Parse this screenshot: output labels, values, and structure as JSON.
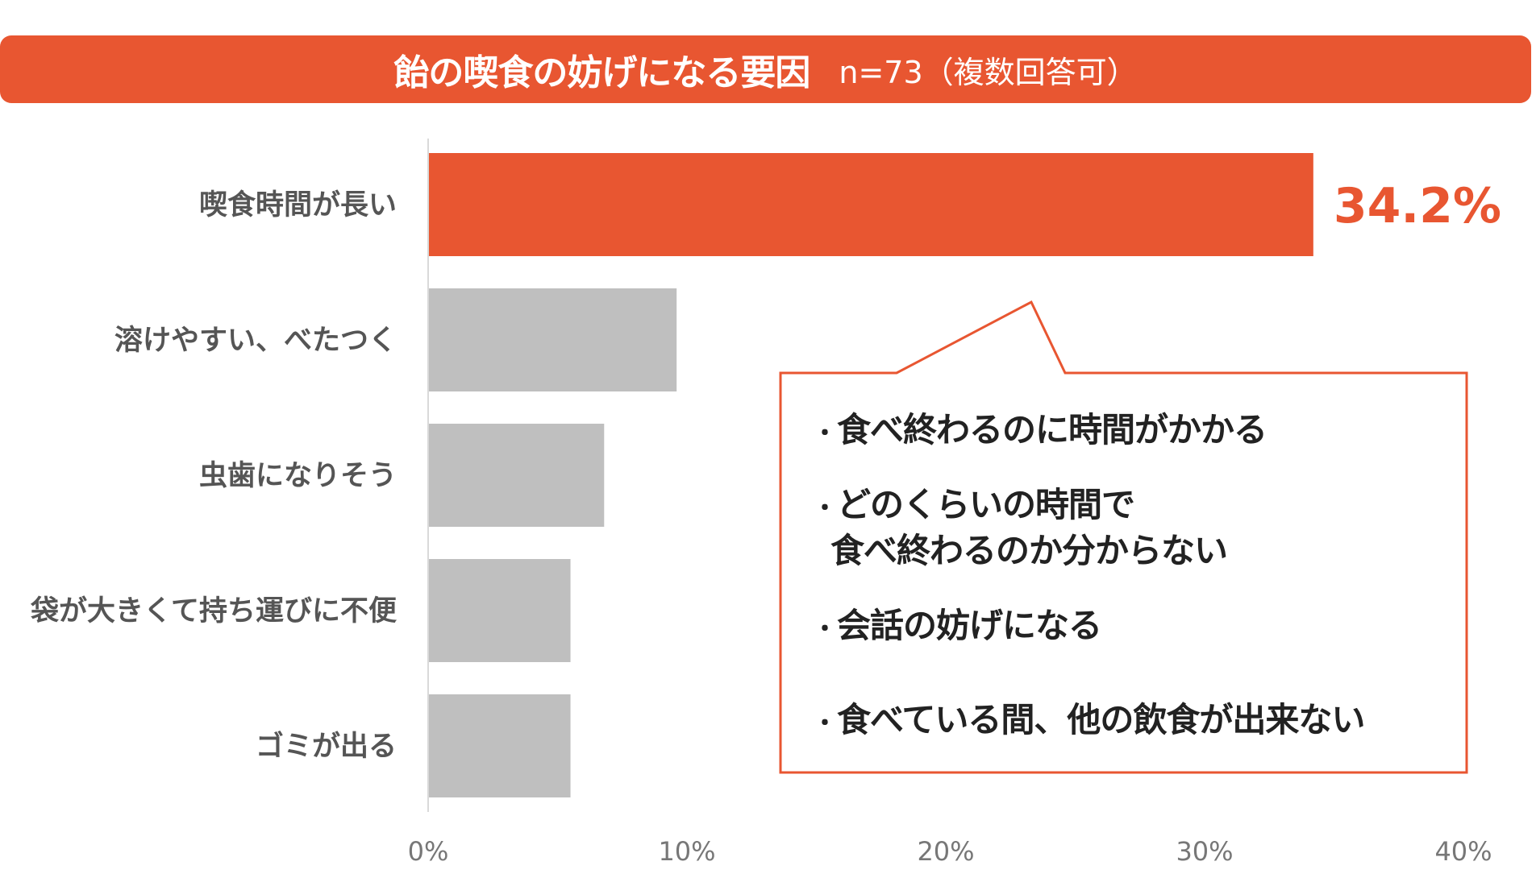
{
  "title": {
    "main": "飴の喫食の妨げになる要因",
    "sub": "n=73（複数回答可）"
  },
  "colors": {
    "accent": "#E85631",
    "bar_gray": "#BFBFBF",
    "axis": "#D9D9D9"
  },
  "chart_data": {
    "type": "bar",
    "orientation": "horizontal",
    "title": "飴の喫食の妨げになる要因",
    "categories": [
      "喫食時間が長い",
      "溶けやすい、べたつく",
      "虫歯になりそう",
      "袋が大きくて持ち運びに不便",
      "ゴミが出る"
    ],
    "values": [
      34.2,
      9.6,
      6.8,
      5.5,
      5.5
    ],
    "highlight_index": 0,
    "data_label": "34.2%",
    "xlim": [
      0,
      40
    ],
    "ticks": [
      "0%",
      "10%",
      "20%",
      "30%",
      "40%"
    ],
    "grid": false
  },
  "callout": {
    "bullet": "・",
    "items": [
      [
        "食べ終わるのに時間がかかる"
      ],
      [
        "どのくらいの時間で",
        "食べ終わるのか分からない"
      ],
      [
        "会話の妨げになる"
      ],
      [
        "食べている間、他の飲食が出来ない"
      ]
    ]
  }
}
